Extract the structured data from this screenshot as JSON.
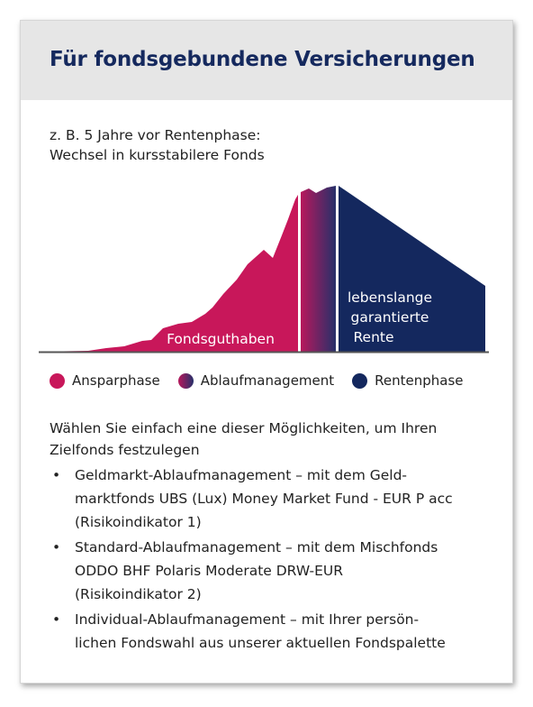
{
  "title": "Für fondsgebundene Versicherungen",
  "chart": {
    "caption_line1": "z. B. 5 Jahre vor Rentenphase:",
    "caption_line2": "Wechsel in kursstabilere Fonds",
    "label_accumulation": "Fondsguthaben",
    "label_pension_line1": "lebenslange",
    "label_pension_line2": "garantierte",
    "label_pension_line3": "Rente",
    "colors": {
      "accumulation": "#c8175a",
      "management_from": "#b8185c",
      "management_to": "#26306a",
      "pension": "#14285e",
      "baseline": "#555555"
    }
  },
  "legend": [
    {
      "label": "Ansparphase",
      "icon": "magenta-dot"
    },
    {
      "label": "Ablaufmanagement",
      "icon": "gradient-dot"
    },
    {
      "label": "Rentenphase",
      "icon": "navy-dot"
    }
  ],
  "intro_line1": "Wählen Sie einfach eine dieser Möglichkeiten, um Ihren",
  "intro_line2": "Zielfonds festzulegen",
  "options": [
    {
      "line1": "Geldmarkt-Ablaufmanagement – mit dem Geld-",
      "line2": "marktfonds UBS (Lux) Money Market Fund - EUR P acc",
      "line3": "(Risikoindikator 1)"
    },
    {
      "line1": "Standard-Ablaufmanagement – mit dem Mischfonds",
      "line2": "ODDO BHF Polaris Moderate DRW-EUR",
      "line3": "(Risikoindikator 2)"
    },
    {
      "line1": "Individual-Ablaufmanagement – mit Ihrer persön-",
      "line2": "lichen Fondswahl aus unserer aktuellen Fondspalette"
    }
  ],
  "bullet": "•"
}
